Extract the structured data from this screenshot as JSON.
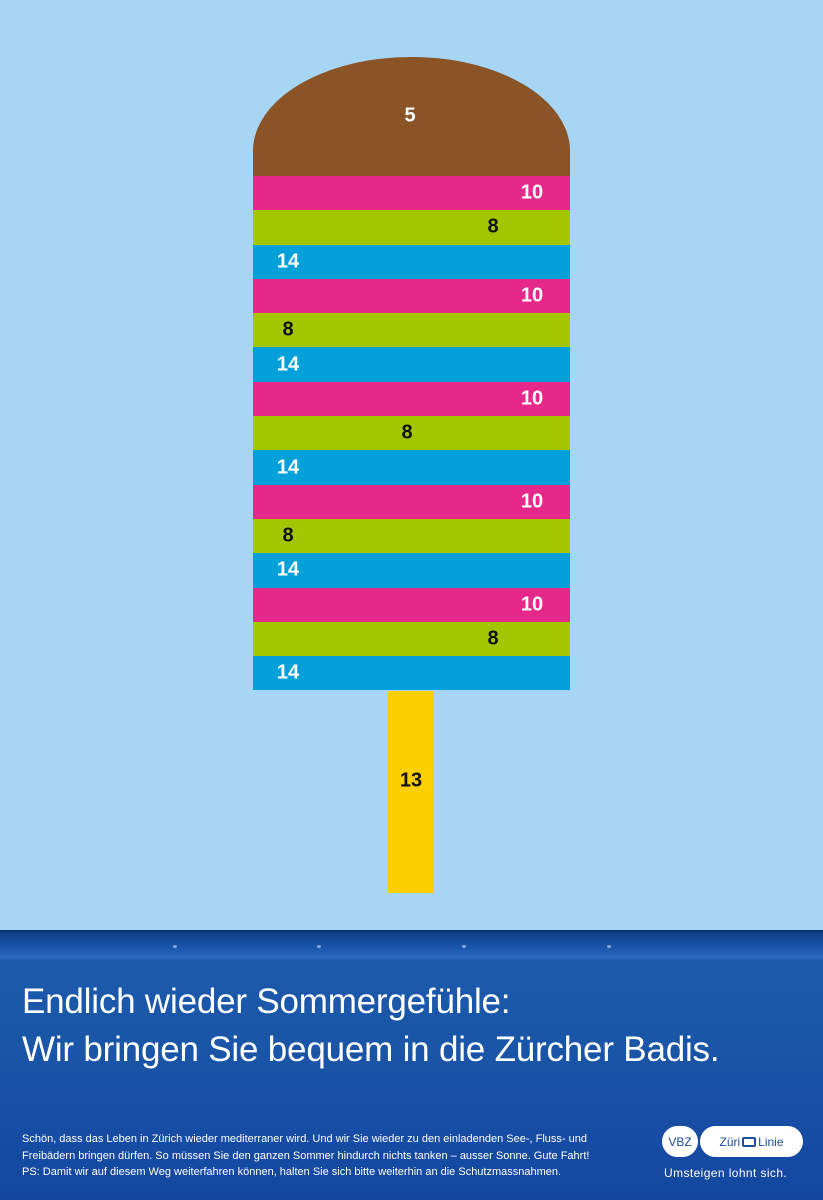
{
  "popsicle": {
    "scoop": {
      "number": "5",
      "color": "#8a5427"
    },
    "stripes": [
      {
        "number": "10",
        "color": "#e6288a",
        "text_color": "#ffffff",
        "align": "right"
      },
      {
        "number": "8",
        "color": "#a3c600",
        "text_color": "#111111",
        "align": "center-right"
      },
      {
        "number": "14",
        "color": "#03a0da",
        "text_color": "#ffffff",
        "align": "left"
      },
      {
        "number": "10",
        "color": "#e6288a",
        "text_color": "#ffffff",
        "align": "right"
      },
      {
        "number": "8",
        "color": "#a3c600",
        "text_color": "#111111",
        "align": "left"
      },
      {
        "number": "14",
        "color": "#03a0da",
        "text_color": "#ffffff",
        "align": "left"
      },
      {
        "number": "10",
        "color": "#e6288a",
        "text_color": "#ffffff",
        "align": "right"
      },
      {
        "number": "8",
        "color": "#a3c600",
        "text_color": "#111111",
        "align": "center"
      },
      {
        "number": "14",
        "color": "#03a0da",
        "text_color": "#ffffff",
        "align": "left"
      },
      {
        "number": "10",
        "color": "#e6288a",
        "text_color": "#ffffff",
        "align": "right"
      },
      {
        "number": "8",
        "color": "#a3c600",
        "text_color": "#111111",
        "align": "left"
      },
      {
        "number": "14",
        "color": "#03a0da",
        "text_color": "#ffffff",
        "align": "left"
      },
      {
        "number": "10",
        "color": "#e6288a",
        "text_color": "#ffffff",
        "align": "right"
      },
      {
        "number": "8",
        "color": "#a3c600",
        "text_color": "#111111",
        "align": "center-right"
      },
      {
        "number": "14",
        "color": "#03a0da",
        "text_color": "#ffffff",
        "align": "left"
      }
    ],
    "stick": {
      "number": "13",
      "color": "#fcd000"
    }
  },
  "banner": {
    "headline": [
      "Endlich wieder Sommergefühle:",
      "Wir bringen Sie bequem in die Zürcher Badis."
    ],
    "body": [
      "Schön, dass das Leben in Zürich wieder mediterraner wird. Und wir Sie wieder zu den einladenden See-, Fluss- und",
      "Freibädern bringen dürfen. So müssen Sie den ganzen Sommer hindurch nichts tanken – ausser Sonne. Gute Fahrt!",
      "PS: Damit wir auf diesem Weg weiterfahren können, halten Sie sich bitte weiterhin an die Schutzmassnahmen."
    ],
    "logo_vbz": "VBZ",
    "logo_zueri": "Züri",
    "logo_linie": "Linie",
    "tagline": "Umsteigen lohnt sich."
  }
}
